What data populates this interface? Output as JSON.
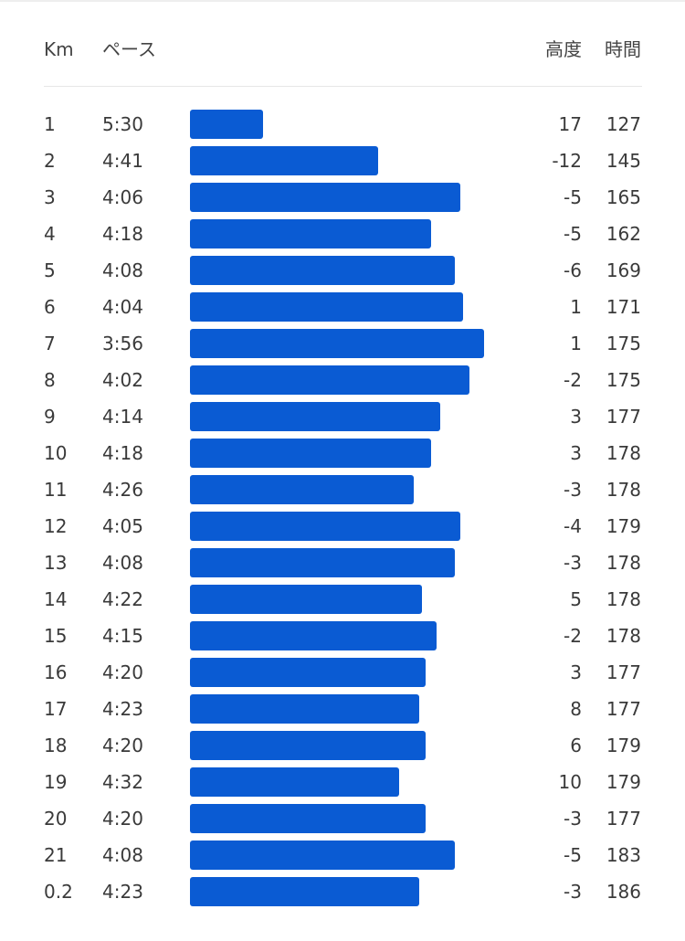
{
  "header": {
    "km": "Km",
    "pace": "ペース",
    "elevation": "高度",
    "heart_rate": "時間"
  },
  "colors": {
    "bar": "#0a5bd3"
  },
  "splits": [
    {
      "km": "1",
      "pace": "5:30",
      "elevation": "17",
      "heart_rate": "127",
      "bar_fraction": 0.248
    },
    {
      "km": "2",
      "pace": "4:41",
      "elevation": "-12",
      "heart_rate": "145",
      "bar_fraction": 0.64
    },
    {
      "km": "3",
      "pace": "4:06",
      "elevation": "-5",
      "heart_rate": "165",
      "bar_fraction": 0.919
    },
    {
      "km": "4",
      "pace": "4:18",
      "elevation": "-5",
      "heart_rate": "162",
      "bar_fraction": 0.82
    },
    {
      "km": "5",
      "pace": "4:08",
      "elevation": "-6",
      "heart_rate": "169",
      "bar_fraction": 0.901
    },
    {
      "km": "6",
      "pace": "4:04",
      "elevation": "1",
      "heart_rate": "171",
      "bar_fraction": 0.929
    },
    {
      "km": "7",
      "pace": "3:56",
      "elevation": "1",
      "heart_rate": "175",
      "bar_fraction": 1.0
    },
    {
      "km": "8",
      "pace": "4:02",
      "elevation": "-2",
      "heart_rate": "175",
      "bar_fraction": 0.95
    },
    {
      "km": "9",
      "pace": "4:14",
      "elevation": "3",
      "heart_rate": "177",
      "bar_fraction": 0.85
    },
    {
      "km": "10",
      "pace": "4:18",
      "elevation": "3",
      "heart_rate": "178",
      "bar_fraction": 0.82
    },
    {
      "km": "11",
      "pace": "4:26",
      "elevation": "-3",
      "heart_rate": "178",
      "bar_fraction": 0.761
    },
    {
      "km": "12",
      "pace": "4:05",
      "elevation": "-4",
      "heart_rate": "179",
      "bar_fraction": 0.919
    },
    {
      "km": "13",
      "pace": "4:08",
      "elevation": "-3",
      "heart_rate": "178",
      "bar_fraction": 0.901
    },
    {
      "km": "14",
      "pace": "4:22",
      "elevation": "5",
      "heart_rate": "178",
      "bar_fraction": 0.789
    },
    {
      "km": "15",
      "pace": "4:15",
      "elevation": "-2",
      "heart_rate": "178",
      "bar_fraction": 0.839
    },
    {
      "km": "16",
      "pace": "4:20",
      "elevation": "3",
      "heart_rate": "177",
      "bar_fraction": 0.801
    },
    {
      "km": "17",
      "pace": "4:23",
      "elevation": "8",
      "heart_rate": "177",
      "bar_fraction": 0.78
    },
    {
      "km": "18",
      "pace": "4:20",
      "elevation": "6",
      "heart_rate": "179",
      "bar_fraction": 0.801
    },
    {
      "km": "19",
      "pace": "4:32",
      "elevation": "10",
      "heart_rate": "179",
      "bar_fraction": 0.711
    },
    {
      "km": "20",
      "pace": "4:20",
      "elevation": "-3",
      "heart_rate": "177",
      "bar_fraction": 0.801
    },
    {
      "km": "21",
      "pace": "4:08",
      "elevation": "-5",
      "heart_rate": "183",
      "bar_fraction": 0.901
    },
    {
      "km": "0.2",
      "pace": "4:23",
      "elevation": "-3",
      "heart_rate": "186",
      "bar_fraction": 0.78
    }
  ]
}
